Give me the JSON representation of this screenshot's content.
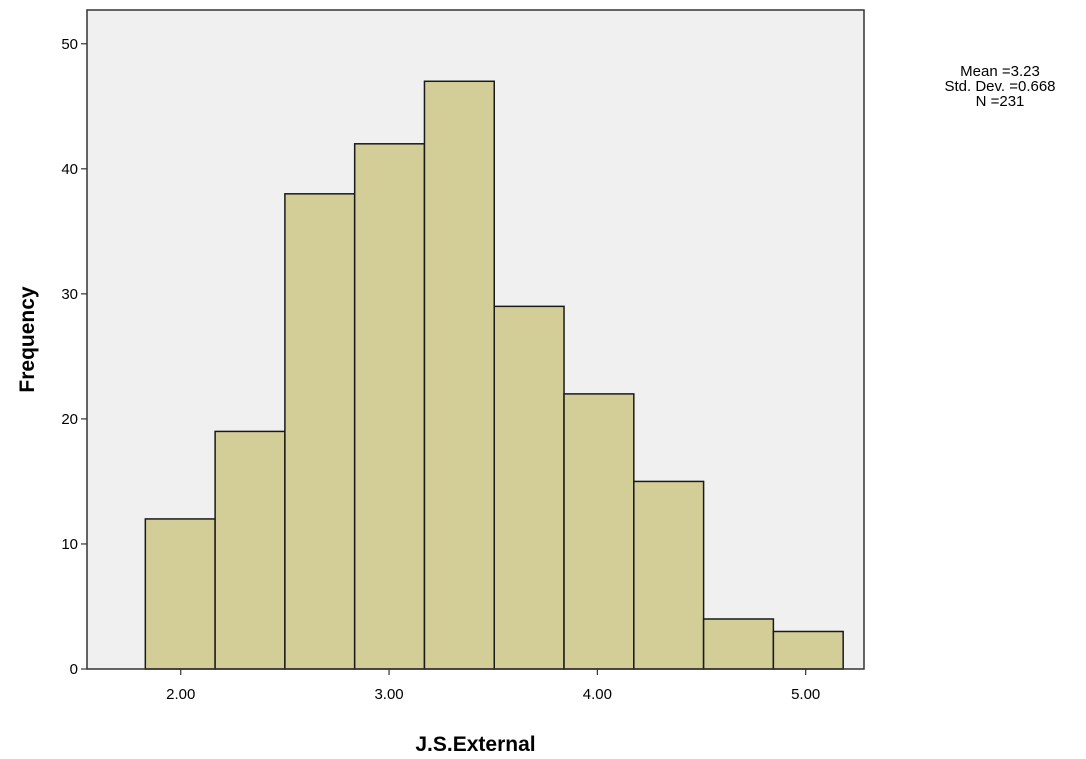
{
  "chart_data": {
    "type": "bar",
    "chart_kind": "histogram",
    "bin_edges": [
      1.83,
      2.165,
      2.5,
      2.835,
      3.17,
      3.505,
      3.84,
      4.175,
      4.51,
      4.845,
      5.18
    ],
    "values": [
      12,
      19,
      38,
      42,
      47,
      29,
      22,
      15,
      4,
      3
    ],
    "xlabel": "J.S.External",
    "ylabel": "Frequency",
    "x_ticks": [
      2.0,
      3.0,
      4.0,
      5.0
    ],
    "x_tick_labels": [
      "2.00",
      "3.00",
      "4.00",
      "5.00"
    ],
    "y_ticks": [
      0,
      10,
      20,
      30,
      40,
      50
    ],
    "y_tick_labels": [
      "0",
      "10",
      "20",
      "30",
      "40",
      "50"
    ],
    "xlim": [
      1.55,
      5.28
    ],
    "ylim": [
      0,
      52.7
    ],
    "grid": false,
    "stats": {
      "mean": "Mean =3.23",
      "std_dev": "Std. Dev. =0.668",
      "n": "N =231"
    },
    "colors": {
      "bar_fill": "#d3ce98",
      "bar_stroke": "#1a1a1a",
      "plot_background": "#f0f0f0",
      "frame": "#333333"
    }
  }
}
